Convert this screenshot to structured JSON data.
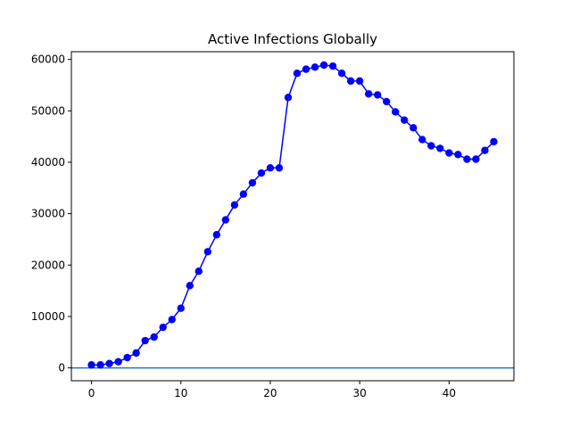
{
  "chart_data": {
    "type": "line",
    "title": "Active Infections Globally",
    "xlabel": "",
    "ylabel": "",
    "xlim": [
      -2.25,
      47.25
    ],
    "ylim": [
      -2500,
      61500
    ],
    "xticks": [
      0,
      10,
      20,
      30,
      40
    ],
    "yticks": [
      0,
      10000,
      20000,
      30000,
      40000,
      50000,
      60000
    ],
    "grid": false,
    "series": [
      {
        "name": "",
        "color": "#0000ff",
        "marker": "circle",
        "x": [
          0,
          1,
          2,
          3,
          4,
          5,
          6,
          7,
          8,
          9,
          10,
          11,
          12,
          13,
          14,
          15,
          16,
          17,
          18,
          19,
          20,
          21,
          22,
          23,
          24,
          25,
          26,
          27,
          28,
          29,
          30,
          31,
          32,
          33,
          34,
          35,
          36,
          37,
          38,
          39,
          40,
          41,
          42,
          43,
          44,
          45
        ],
        "y": [
          580,
          580,
          850,
          1200,
          2000,
          2900,
          5300,
          6000,
          7900,
          9400,
          11600,
          16000,
          18800,
          22600,
          25900,
          28800,
          31700,
          33800,
          36000,
          37900,
          38900,
          38900,
          52600,
          57300,
          58100,
          58500,
          58900,
          58700,
          57300,
          55800,
          55800,
          53300,
          53100,
          51800,
          49800,
          48200,
          46700,
          44400,
          43200,
          42700,
          41800,
          41500,
          40600,
          40600,
          42300,
          44000
        ]
      }
    ],
    "hlines": [
      {
        "y": 0,
        "color": "#1f77b4"
      }
    ]
  }
}
